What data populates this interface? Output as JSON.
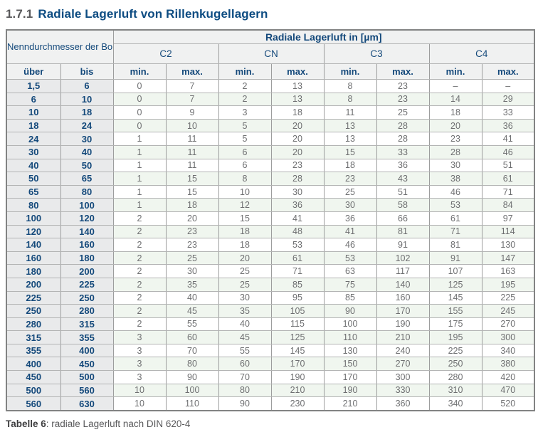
{
  "title": {
    "number": "1.7.1",
    "text": "Radiale Lagerluft von Rillenkugellagern"
  },
  "table": {
    "bore_header": "Nenndurchmesser der Bohrung d [mm]",
    "clearance_header": "Radiale Lagerluft in [µm]",
    "classes": [
      "C2",
      "CN",
      "C3",
      "C4"
    ],
    "min_label": "min.",
    "max_label": "max.",
    "over_label": "über",
    "to_label": "bis",
    "rows": [
      {
        "over": "1,5",
        "to": "6",
        "values": [
          "0",
          "7",
          "2",
          "13",
          "8",
          "23",
          "–",
          "–"
        ]
      },
      {
        "over": "6",
        "to": "10",
        "values": [
          "0",
          "7",
          "2",
          "13",
          "8",
          "23",
          "14",
          "29"
        ]
      },
      {
        "over": "10",
        "to": "18",
        "values": [
          "0",
          "9",
          "3",
          "18",
          "11",
          "25",
          "18",
          "33"
        ]
      },
      {
        "over": "18",
        "to": "24",
        "values": [
          "0",
          "10",
          "5",
          "20",
          "13",
          "28",
          "20",
          "36"
        ]
      },
      {
        "over": "24",
        "to": "30",
        "values": [
          "1",
          "11",
          "5",
          "20",
          "13",
          "28",
          "23",
          "41"
        ]
      },
      {
        "over": "30",
        "to": "40",
        "values": [
          "1",
          "11",
          "6",
          "20",
          "15",
          "33",
          "28",
          "46"
        ]
      },
      {
        "over": "40",
        "to": "50",
        "values": [
          "1",
          "11",
          "6",
          "23",
          "18",
          "36",
          "30",
          "51"
        ]
      },
      {
        "over": "50",
        "to": "65",
        "values": [
          "1",
          "15",
          "8",
          "28",
          "23",
          "43",
          "38",
          "61"
        ]
      },
      {
        "over": "65",
        "to": "80",
        "values": [
          "1",
          "15",
          "10",
          "30",
          "25",
          "51",
          "46",
          "71"
        ]
      },
      {
        "over": "80",
        "to": "100",
        "values": [
          "1",
          "18",
          "12",
          "36",
          "30",
          "58",
          "53",
          "84"
        ]
      },
      {
        "over": "100",
        "to": "120",
        "values": [
          "2",
          "20",
          "15",
          "41",
          "36",
          "66",
          "61",
          "97"
        ]
      },
      {
        "over": "120",
        "to": "140",
        "values": [
          "2",
          "23",
          "18",
          "48",
          "41",
          "81",
          "71",
          "114"
        ]
      },
      {
        "over": "140",
        "to": "160",
        "values": [
          "2",
          "23",
          "18",
          "53",
          "46",
          "91",
          "81",
          "130"
        ]
      },
      {
        "over": "160",
        "to": "180",
        "values": [
          "2",
          "25",
          "20",
          "61",
          "53",
          "102",
          "91",
          "147"
        ]
      },
      {
        "over": "180",
        "to": "200",
        "values": [
          "2",
          "30",
          "25",
          "71",
          "63",
          "117",
          "107",
          "163"
        ]
      },
      {
        "over": "200",
        "to": "225",
        "values": [
          "2",
          "35",
          "25",
          "85",
          "75",
          "140",
          "125",
          "195"
        ]
      },
      {
        "over": "225",
        "to": "250",
        "values": [
          "2",
          "40",
          "30",
          "95",
          "85",
          "160",
          "145",
          "225"
        ]
      },
      {
        "over": "250",
        "to": "280",
        "values": [
          "2",
          "45",
          "35",
          "105",
          "90",
          "170",
          "155",
          "245"
        ]
      },
      {
        "over": "280",
        "to": "315",
        "values": [
          "2",
          "55",
          "40",
          "115",
          "100",
          "190",
          "175",
          "270"
        ]
      },
      {
        "over": "315",
        "to": "355",
        "values": [
          "3",
          "60",
          "45",
          "125",
          "110",
          "210",
          "195",
          "300"
        ]
      },
      {
        "over": "355",
        "to": "400",
        "values": [
          "3",
          "70",
          "55",
          "145",
          "130",
          "240",
          "225",
          "340"
        ]
      },
      {
        "over": "400",
        "to": "450",
        "values": [
          "3",
          "80",
          "60",
          "170",
          "150",
          "270",
          "250",
          "380"
        ]
      },
      {
        "over": "450",
        "to": "500",
        "values": [
          "3",
          "90",
          "70",
          "190",
          "170",
          "300",
          "280",
          "420"
        ]
      },
      {
        "over": "500",
        "to": "560",
        "values": [
          "10",
          "100",
          "80",
          "210",
          "190",
          "330",
          "310",
          "470"
        ]
      },
      {
        "over": "560",
        "to": "630",
        "values": [
          "10",
          "110",
          "90",
          "230",
          "210",
          "360",
          "340",
          "520"
        ]
      }
    ]
  },
  "caption": {
    "label": "Tabelle 6",
    "rest": ": radiale Lagerluft nach DIN 620-4"
  },
  "colors": {
    "title_blue": "#0d4c82",
    "header_blue": "#14497b",
    "data_gray": "#6e6f71",
    "header_bg": "#f0f1f1",
    "range_col_bg": "#e9eaeb",
    "stripe_green": "#f0f6ef",
    "border_gray": "#9c9d9d"
  }
}
